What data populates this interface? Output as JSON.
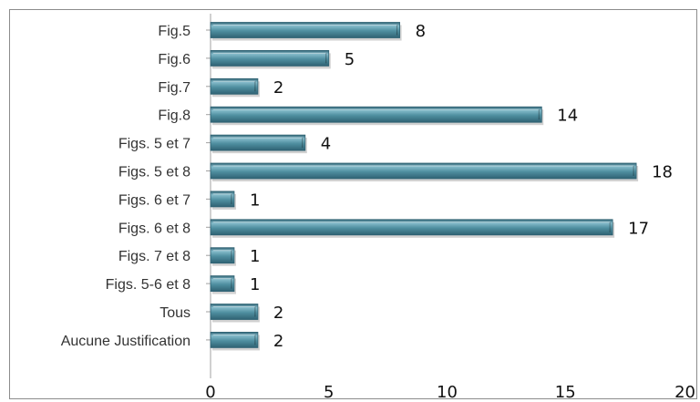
{
  "chart_data": {
    "type": "bar",
    "orientation": "horizontal",
    "categories": [
      "Fig.5",
      "Fig.6",
      "Fig.7",
      "Fig.8",
      "Figs. 5 et 7",
      "Figs. 5 et 8",
      "Figs. 6 et 7",
      "Figs. 6 et 8",
      "Figs. 7 et 8",
      "Figs. 5-6 et 8",
      "Tous",
      "Aucune Justification"
    ],
    "values": [
      8,
      5,
      2,
      14,
      4,
      18,
      1,
      17,
      1,
      1,
      2,
      2
    ],
    "title": "",
    "xlabel": "",
    "ylabel": "",
    "xlim": [
      0,
      20
    ],
    "xticks": [
      0,
      5,
      10,
      15,
      20
    ],
    "grid": false,
    "legend": "none",
    "data_labels": true,
    "colors": {
      "bar_fill": "#4f8fa0",
      "bar_light": "#86bccb",
      "bar_dark": "#2f6273",
      "axis": "#a0a0a0",
      "frame": "#8c8c8c"
    }
  }
}
